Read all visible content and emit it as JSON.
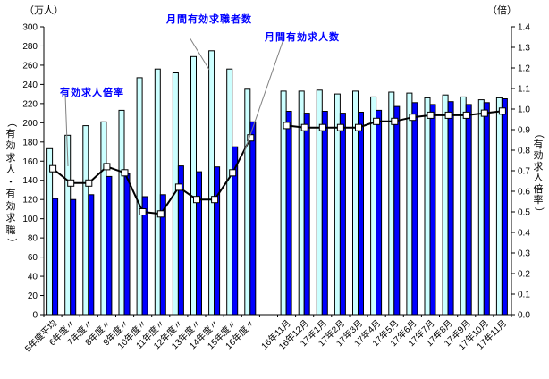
{
  "chart_data": {
    "type": "bar",
    "subtype": "dual-axis bar+line combo",
    "title": "",
    "unit_left": "（万人）",
    "unit_right": "（倍）",
    "axis_title_left": "（有効求人・有効求職）",
    "axis_title_right": "（有効求人倍率）",
    "categories": [
      "5年度平均",
      "6年度〃",
      "7年度〃",
      "8年度〃",
      "9年度〃",
      "10年度〃",
      "11年度〃",
      "12年度〃",
      "13年度〃",
      "14年度〃",
      "15年度〃",
      "16年度〃",
      "16年11月",
      "16年12月",
      "17年1月",
      "17年2月",
      "17年3月",
      "17年4月",
      "17年5月",
      "17年6月",
      "17年7月",
      "17年8月",
      "17年9月",
      "17年10月",
      "17年11月"
    ],
    "gap_after_index": 11,
    "series": [
      {
        "name": "月間有効求職者数",
        "type": "bar",
        "axis": "left",
        "color": "#CCFFFF",
        "border_color": "#000000",
        "values": [
          173,
          187,
          197,
          201,
          213,
          247,
          256,
          252,
          269,
          275,
          256,
          235,
          233,
          233,
          234,
          230,
          233,
          227,
          232,
          231,
          226,
          229,
          227,
          224,
          226
        ]
      },
      {
        "name": "月間有効求人数",
        "type": "bar",
        "axis": "left",
        "color": "#0000FF",
        "border_color": "#000000",
        "values": [
          121,
          120,
          125,
          144,
          147,
          123,
          125,
          155,
          149,
          154,
          175,
          201,
          212,
          210,
          212,
          210,
          211,
          213,
          217,
          221,
          219,
          222,
          219,
          221,
          225
        ]
      },
      {
        "name": "有効求人倍率",
        "type": "line",
        "axis": "right",
        "color": "#000000",
        "marker": "white-square",
        "values": [
          0.71,
          0.64,
          0.64,
          0.72,
          0.69,
          0.5,
          0.49,
          0.62,
          0.56,
          0.56,
          0.69,
          0.86,
          0.92,
          0.91,
          0.91,
          0.91,
          0.91,
          0.94,
          0.94,
          0.96,
          0.97,
          0.97,
          0.97,
          0.98,
          0.99
        ]
      }
    ],
    "left_axis": {
      "min": 0,
      "max": 300,
      "step": 20
    },
    "right_axis": {
      "min": 0.0,
      "max": 1.4,
      "step": 0.1
    },
    "grid": false,
    "legend_position": "none",
    "annotation_color": "#0000FF",
    "leader_color": "#808080"
  }
}
